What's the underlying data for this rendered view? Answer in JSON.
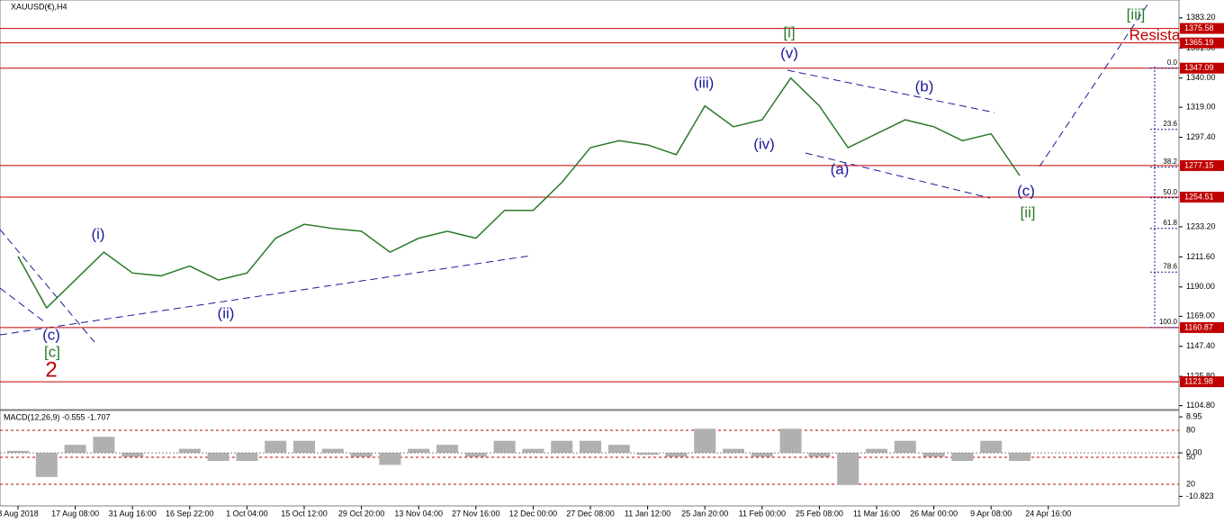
{
  "chart_data": {
    "type": "line",
    "title": "XAUUSD(€),H4",
    "color": "#2a7a2a",
    "categories": [
      "8 Aug 2018",
      null,
      "17 Aug 08:00",
      null,
      "31 Aug 16:00",
      null,
      "16 Sep 22:00",
      null,
      "1 Oct 04:00",
      null,
      "15 Oct 12:00",
      null,
      "29 Oct 20:00",
      null,
      "13 Nov 04:00",
      null,
      "27 Nov 16:00",
      null,
      "12 Dec 00:00",
      null,
      "27 Dec 08:00",
      null,
      "11 Jan 12:00",
      null,
      "25 Jan 20:00",
      null,
      "11 Feb 00:00",
      null,
      "25 Feb 08:00",
      null,
      "11 Mar 16:00",
      null,
      "26 Mar 00:00",
      null,
      "9 Apr 08:00",
      null,
      "24 Apr 16:00"
    ],
    "values": [
      1212,
      1175,
      1195,
      1215,
      1200,
      1198,
      1205,
      1195,
      1200,
      1225,
      1235,
      1232,
      1230,
      1215,
      1225,
      1230,
      1225,
      1245,
      1245,
      1265,
      1290,
      1295,
      1292,
      1285,
      1320,
      1305,
      1310,
      1340,
      1320,
      1290,
      1300,
      1310,
      1305,
      1295,
      1300,
      1270,
      null
    ],
    "ylim": [
      1102,
      1396
    ],
    "yticks": [
      {
        "value": 1383.2,
        "label": "1383.20"
      },
      {
        "value": 1361.5,
        "label": "1361.50"
      },
      {
        "value": 1340,
        "label": "1340.00"
      },
      {
        "value": 1319,
        "label": "1319.00"
      },
      {
        "value": 1297.4,
        "label": "1297.40"
      },
      {
        "value": 1233.2,
        "label": "1233.20"
      },
      {
        "value": 1211.6,
        "label": "1211.60"
      },
      {
        "value": 1190,
        "label": "1190.00"
      },
      {
        "value": 1169,
        "label": "1169.00"
      },
      {
        "value": 1147.4,
        "label": "1147.40"
      },
      {
        "value": 1125.8,
        "label": "1125.80"
      },
      {
        "value": 1104.8,
        "label": "1104.80"
      }
    ],
    "levels": [
      1375.58,
      1365.19,
      1347.09,
      1277.15,
      1254.51,
      1160.87,
      1121.98
    ],
    "level_color": "#c00000",
    "fib_levels": [
      {
        "value": 0,
        "label": "0.0"
      },
      23.6,
      38.2,
      {
        "value": 50,
        "label": "50.0"
      },
      61.8,
      78.6,
      {
        "value": 100,
        "label": "100.0"
      }
    ],
    "annotations": [
      "(c)",
      "[c]",
      "2",
      "(i)",
      "(ii)",
      "(iii)",
      "(iv)",
      "(v)",
      "[i]",
      "(a)",
      "(b)",
      "(c)",
      "[ii]",
      "[iii]",
      "Resista"
    ],
    "macd": {
      "title": "MACD(12,26,9) -0.555 -1.707",
      "color": "#b0b0b0",
      "values": [
        0.5,
        -6,
        2,
        4,
        -1,
        0,
        1,
        -2,
        -2,
        3,
        3,
        1,
        -1,
        -3,
        1,
        2,
        -1,
        3,
        1,
        3,
        3,
        2,
        -0.5,
        -1,
        6,
        1,
        -1,
        6,
        -1,
        -8,
        1,
        3,
        -1,
        -2,
        3,
        -2,
        null
      ],
      "ylim": [
        -13.2,
        10.1
      ],
      "yticks": [
        {
          "value": 8.95,
          "label": "8.95"
        },
        {
          "value": 0,
          "label": "0.00"
        },
        -10.823
      ],
      "levels": [
        80,
        50,
        20
      ]
    }
  }
}
